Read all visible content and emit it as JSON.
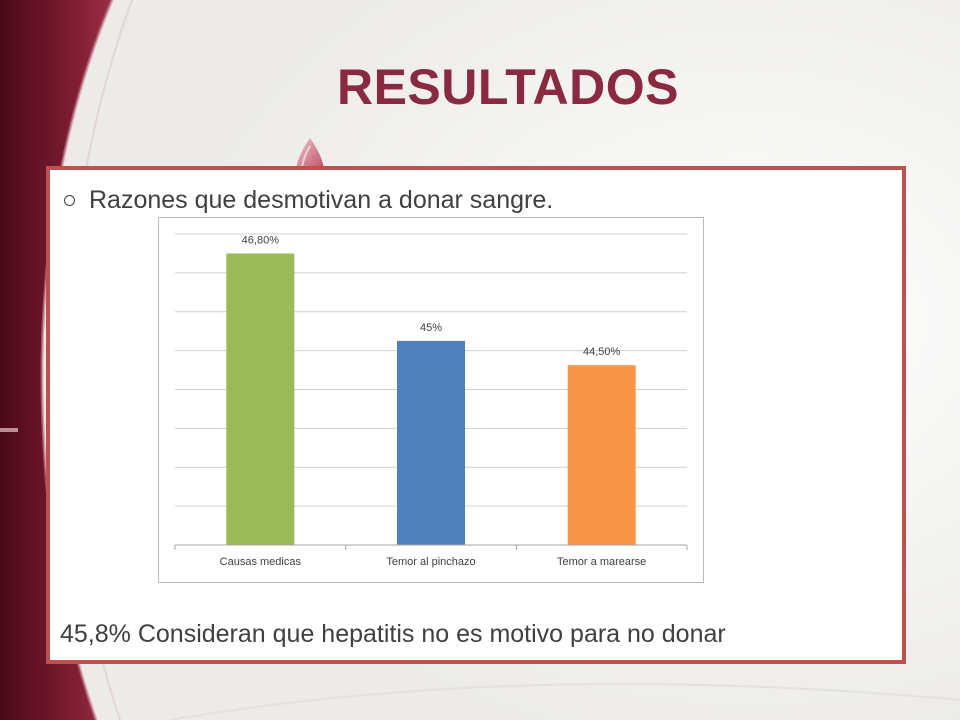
{
  "slide": {
    "title": "RESULTADOS",
    "bullet_text": "Razones que desmotivan a donar sangre.",
    "footer_text": "45,8% Consideran que hepatitis no es motivo para no donar"
  },
  "colors": {
    "title": "#8a2942",
    "frame_border": "#c0504d",
    "bg_wine": "#6e1428",
    "bar_1": "#9bbb59",
    "bar_2": "#4f81bd",
    "bar_3": "#f79646"
  },
  "chart_data": {
    "type": "bar",
    "categories": [
      "Causas medicas",
      "Temor al pinchazo",
      "Temor a marearse"
    ],
    "values": [
      46.8,
      45,
      44.5
    ],
    "data_labels": [
      "46,80%",
      "45%",
      "44,50%"
    ],
    "colors": [
      "#9bbb59",
      "#4f81bd",
      "#f79646"
    ],
    "title": "",
    "xlabel": "",
    "ylabel": "",
    "ylim": [
      40.8,
      47.2
    ],
    "grid": true,
    "gridline_step": 0.8,
    "show_y_axis_labels": false,
    "legend": "none"
  }
}
